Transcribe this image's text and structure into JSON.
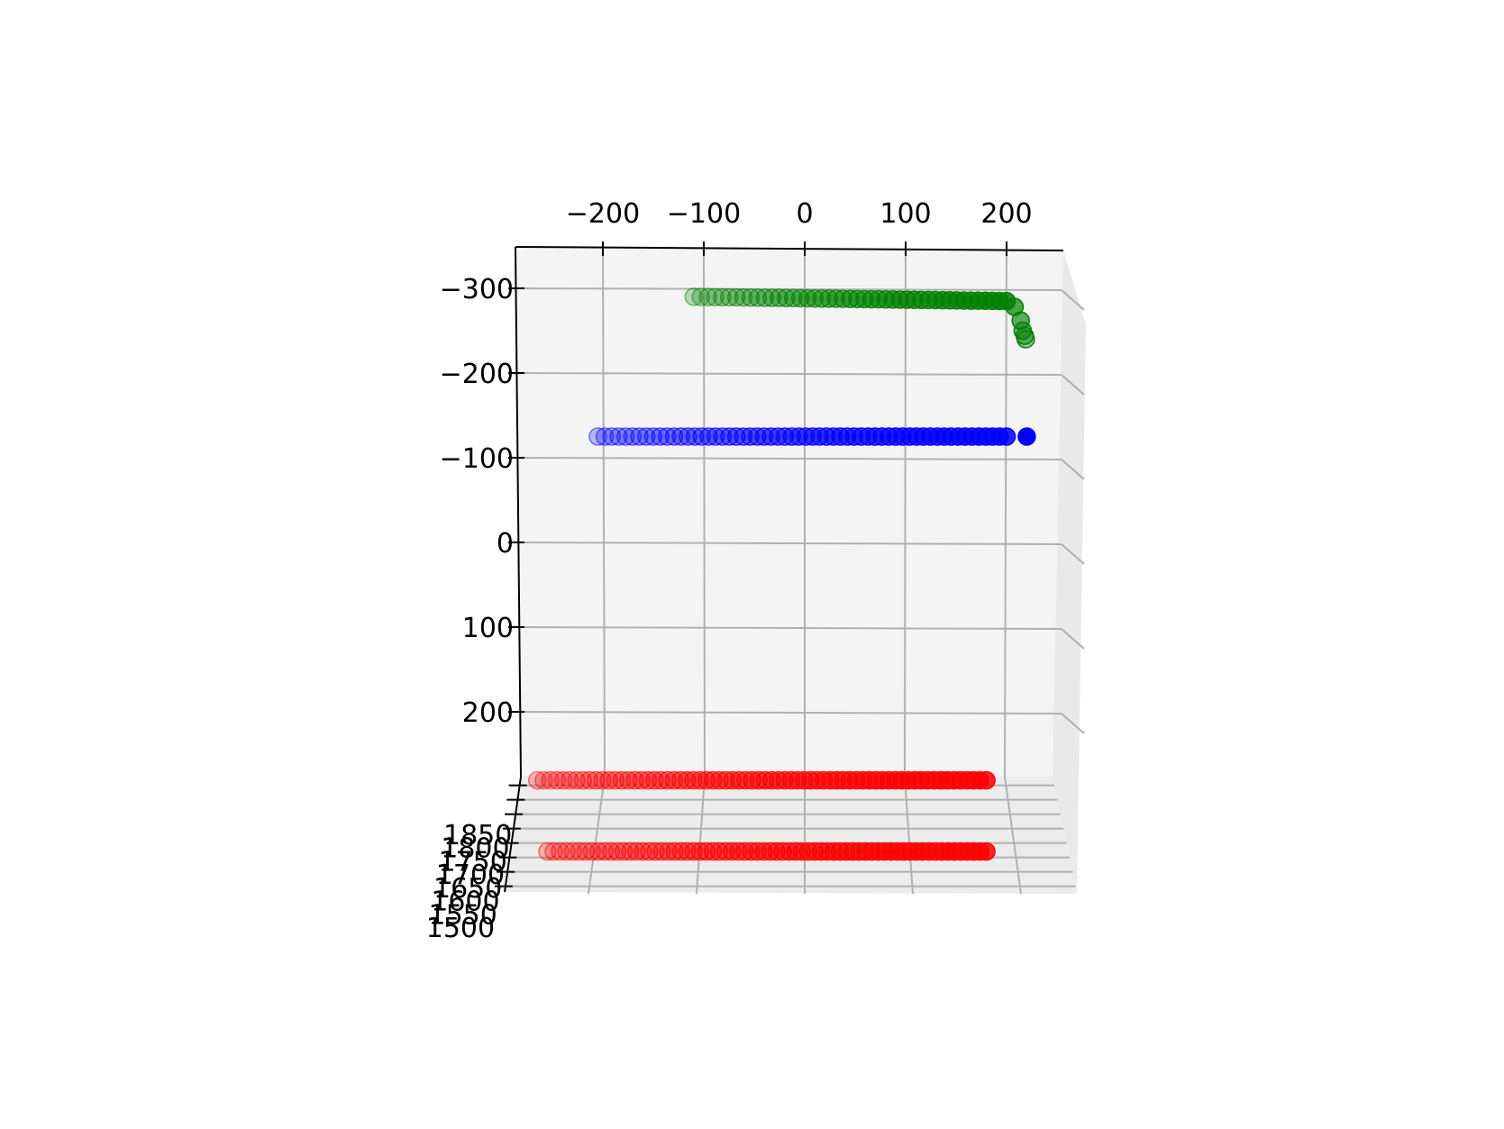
{
  "chart_data": {
    "type": "scatter",
    "projection": "3d",
    "title": "",
    "grid": true,
    "legend": "none",
    "pane_color": "#f4f4f4",
    "grid_color": "#b0b0b0",
    "axes": {
      "x": {
        "range": [
          -280,
          260
        ],
        "ticks": [
          -200,
          -100,
          0,
          100,
          200
        ],
        "tick_labels": [
          "−200",
          "−100",
          "0",
          "100",
          "200"
        ],
        "label": ""
      },
      "y": {
        "range": [
          -340,
          290
        ],
        "ticks": [
          -300,
          -200,
          -100,
          0,
          100,
          200
        ],
        "tick_labels": [
          "−300",
          "−200",
          "−100",
          "0",
          "100",
          "200"
        ],
        "label": ""
      },
      "z": {
        "range": [
          1480,
          1880
        ],
        "ticks": [
          1500,
          1550,
          1600,
          1650,
          1700,
          1750,
          1800,
          1850
        ],
        "tick_labels": [
          "1500",
          "1550",
          "1600",
          "1650",
          "1700",
          "1750",
          "1800",
          "1850"
        ],
        "label": ""
      }
    },
    "series": [
      {
        "color": "#008000",
        "x_start": -110,
        "x_end": 200,
        "y": -290,
        "y_end": -285,
        "count": 45,
        "hook": [
          [
            208,
            -278
          ],
          [
            214,
            -262
          ],
          [
            216,
            -250
          ],
          [
            218,
            -244
          ],
          [
            219,
            -240
          ]
        ]
      },
      {
        "color": "#0000ff",
        "x_start": -205,
        "x_end": 200,
        "y": -125,
        "count": 60,
        "extra": [
          [
            220,
            -125
          ]
        ]
      },
      {
        "color": "#ff0000",
        "x_start": -265,
        "x_end": 180,
        "y": 280,
        "depth": "upper",
        "count": 70
      },
      {
        "color": "#ff0000",
        "x_start": -255,
        "x_end": 180,
        "y": 280,
        "depth": "lower",
        "count": 70
      }
    ]
  }
}
